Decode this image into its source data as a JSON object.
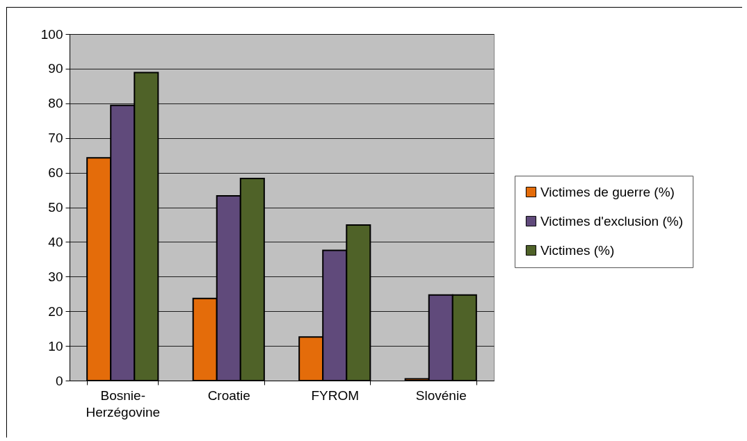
{
  "chart_data": {
    "type": "bar",
    "categories": [
      "Bosnie-Herzégovine",
      "Croatie",
      "FYROM",
      "Slovénie"
    ],
    "series": [
      {
        "name": "Victimes de guerre (%)",
        "color": "#e46c0a",
        "values": [
          64.3,
          23.7,
          12.6,
          0.5
        ]
      },
      {
        "name": "Victimes d'exclusion (%)",
        "color": "#604a7b",
        "values": [
          79.4,
          53.3,
          37.6,
          24.7
        ]
      },
      {
        "name": "Victimes (%)",
        "color": "#4f6228",
        "values": [
          88.9,
          58.3,
          44.9,
          24.7
        ]
      }
    ],
    "ylim": [
      0,
      100
    ],
    "yticks": [
      0,
      10,
      20,
      30,
      40,
      50,
      60,
      70,
      80,
      90,
      100
    ],
    "grid": "y",
    "legend": "right"
  }
}
